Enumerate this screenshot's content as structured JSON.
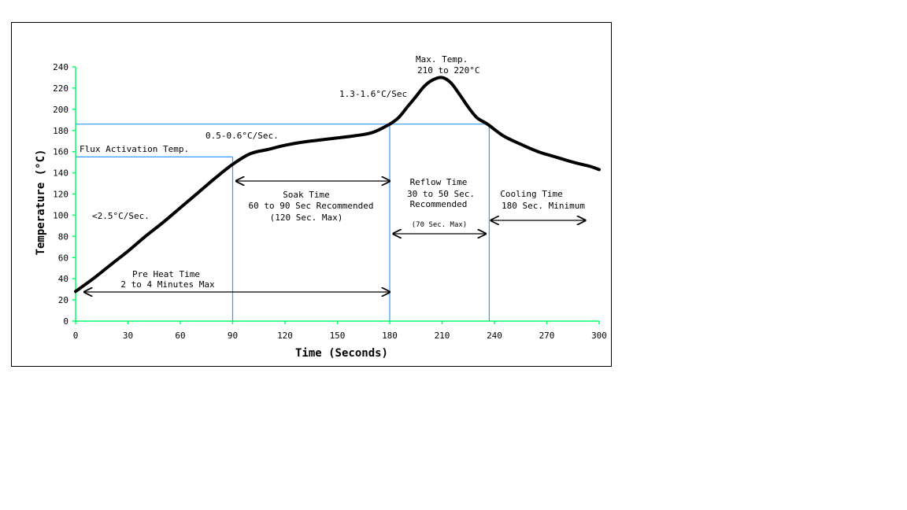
{
  "chart_data": {
    "type": "line",
    "title": "",
    "xlabel": "Time (Seconds)",
    "ylabel": "Temperature (°C)",
    "xlim": [
      0,
      300
    ],
    "ylim": [
      0,
      240
    ],
    "x_ticks": [
      0,
      30,
      60,
      90,
      120,
      150,
      180,
      210,
      240,
      270,
      300
    ],
    "y_ticks": [
      0,
      20,
      40,
      60,
      80,
      100,
      120,
      140,
      160,
      180,
      200,
      220,
      240
    ],
    "grid": false,
    "axis_color": "#00ff66",
    "guide_color": "#3399ff",
    "line_color": "#000000",
    "series": [
      {
        "x": [
          0,
          10,
          20,
          30,
          40,
          50,
          60,
          70,
          80,
          90,
          100,
          110,
          120,
          130,
          140,
          150,
          160,
          170,
          180,
          185,
          190,
          195,
          200,
          205,
          210,
          215,
          220,
          225,
          230,
          236,
          245,
          255,
          265,
          275,
          285,
          295,
          300
        ],
        "y": [
          28,
          40,
          53,
          66,
          80,
          93,
          107,
          121,
          135,
          148,
          158,
          162,
          166,
          169,
          171,
          173,
          175,
          178,
          186,
          192,
          202,
          212,
          222,
          228,
          230,
          225,
          214,
          202,
          192,
          186,
          175,
          167,
          160,
          155,
          150,
          146,
          143
        ]
      }
    ],
    "guides": {
      "flux_activation_temp": 155,
      "reflow_temp": 186,
      "preheat_end_time": 90,
      "soak_end_time": 180,
      "reflow_end_time": 237
    },
    "annotations": {
      "flux_activation": "Flux Activation Temp.",
      "ramp_rate_1": "<2.5°C/Sec.",
      "ramp_rate_2": "0.5-0.6°C/Sec.",
      "ramp_rate_3": "1.3-1.6°C/Sec",
      "max_temp_line1": "Max. Temp.",
      "max_temp_line2": "210 to 220°C",
      "soak_line1": "Soak Time",
      "soak_line2": "60 to 90 Sec Recommended",
      "soak_line3": "(120 Sec. Max)",
      "reflow_line1": "Reflow Time",
      "reflow_line2": "30 to 50 Sec.",
      "reflow_line3": "Recommended",
      "reflow_line4": "(70 Sec. Max)",
      "cooling_line1": "Cooling Time",
      "cooling_line2": "180 Sec. Minimum",
      "preheat_line1": "Pre Heat Time",
      "preheat_line2": "2 to 4 Minutes Max"
    },
    "intervals": {
      "preheat": [
        5,
        180
      ],
      "soak": [
        92,
        180
      ],
      "reflow": [
        182,
        235
      ],
      "cooling": [
        238,
        292
      ]
    }
  }
}
